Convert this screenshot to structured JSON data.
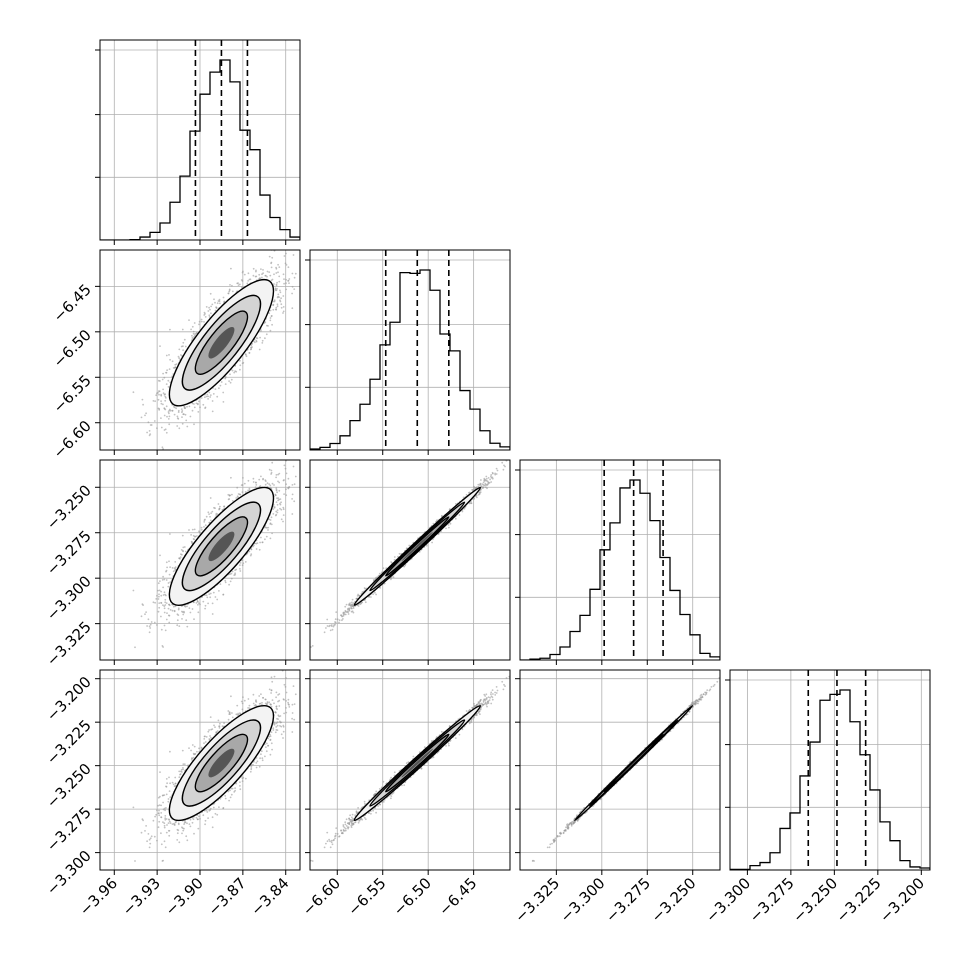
{
  "chart_data": {
    "type": "corner",
    "parameters": [
      {
        "range": [
          -3.97,
          -3.83
        ],
        "ticks": [
          -3.96,
          -3.93,
          -3.9,
          -3.87,
          -3.84
        ],
        "tick_labels": [
          "−3.96",
          "−3.93",
          "−3.90",
          "−3.87",
          "−3.84"
        ],
        "mean": -3.885,
        "sd": 0.01822,
        "quantiles": [
          -3.9032,
          -3.885,
          -3.8668
        ]
      },
      {
        "range": [
          -6.63,
          -6.41
        ],
        "ticks": [
          -6.6,
          -6.55,
          -6.5,
          -6.45
        ],
        "tick_labels": [
          "−6.60",
          "−6.55",
          "−6.50",
          "−6.45"
        ],
        "mean": -6.512,
        "sd": 0.0347,
        "quantiles": [
          -6.5467,
          -6.512,
          -6.4773
        ]
      },
      {
        "range": [
          -3.345,
          -3.235
        ],
        "ticks": [
          -3.325,
          -3.3,
          -3.275,
          -3.25
        ],
        "tick_labels": [
          "−3.325",
          "−3.300",
          "−3.275",
          "−3.250"
        ],
        "mean": -3.2825,
        "sd": 0.0162,
        "quantiles": [
          -3.2987,
          -3.2825,
          -3.2663
        ]
      },
      {
        "range": [
          -3.31,
          -3.195
        ],
        "ticks": [
          -3.3,
          -3.275,
          -3.25,
          -3.225,
          -3.2
        ],
        "tick_labels": [
          "−3.300",
          "−3.275",
          "−3.250",
          "−3.225",
          "−3.200"
        ],
        "mean": -3.2485,
        "sd": 0.0165,
        "quantiles": [
          -3.265,
          -3.2485,
          -3.232
        ]
      }
    ],
    "correlations": [
      [
        1.0,
        0.82,
        0.82,
        0.82
      ],
      [
        0.82,
        1.0,
        0.995,
        0.993
      ],
      [
        0.82,
        0.995,
        1.0,
        0.999
      ],
      [
        0.82,
        0.993,
        0.999,
        1.0
      ]
    ],
    "histogram_bins": 20,
    "grid": true,
    "contour_levels_sigma": [
      0.5,
      1.0,
      1.5,
      2.0
    ]
  }
}
